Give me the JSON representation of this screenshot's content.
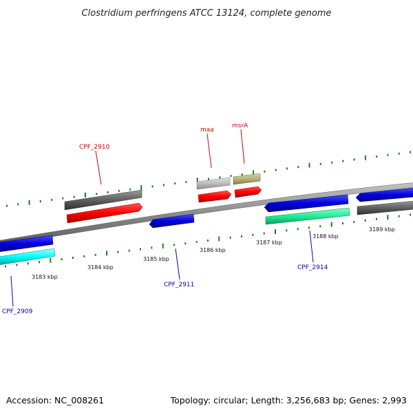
{
  "title": "Clostridium perfringens ATCC 13124, complete genome",
  "footer": {
    "accession": "Accession: NC_008261",
    "topology": "Topology: circular; Length: 3,256,683 bp; Genes: 2,993"
  },
  "scale": {
    "unit": "kbp",
    "ticks": [
      "3183 kbp",
      "3184 kbp",
      "3185 kbp",
      "3186 kbp",
      "3187 kbp",
      "3188 kbp",
      "3189 kbp"
    ]
  },
  "gene_labels": {
    "cpf_2910": "CPF_2910",
    "maa": "maa",
    "msrA": "msrA",
    "cpf_2909": "CPF_2909",
    "cpf_2911": "CPF_2911",
    "cpf_2914": "CPF_2914"
  },
  "colors": {
    "forward_label": "#cc0000",
    "reverse_label": "#0000aa",
    "tick_dots": "#1a7a1a",
    "backbone": "#8a8a8a",
    "red_gene": "#ff0000",
    "blue_gene": "#0000dd",
    "cyan_gene": "#00ffff",
    "seagreen_gene": "#22ee99",
    "dark_gray_gene": "#606060",
    "light_gray_gene": "#bdbdbd",
    "olive_gene": "#b5b27a"
  }
}
